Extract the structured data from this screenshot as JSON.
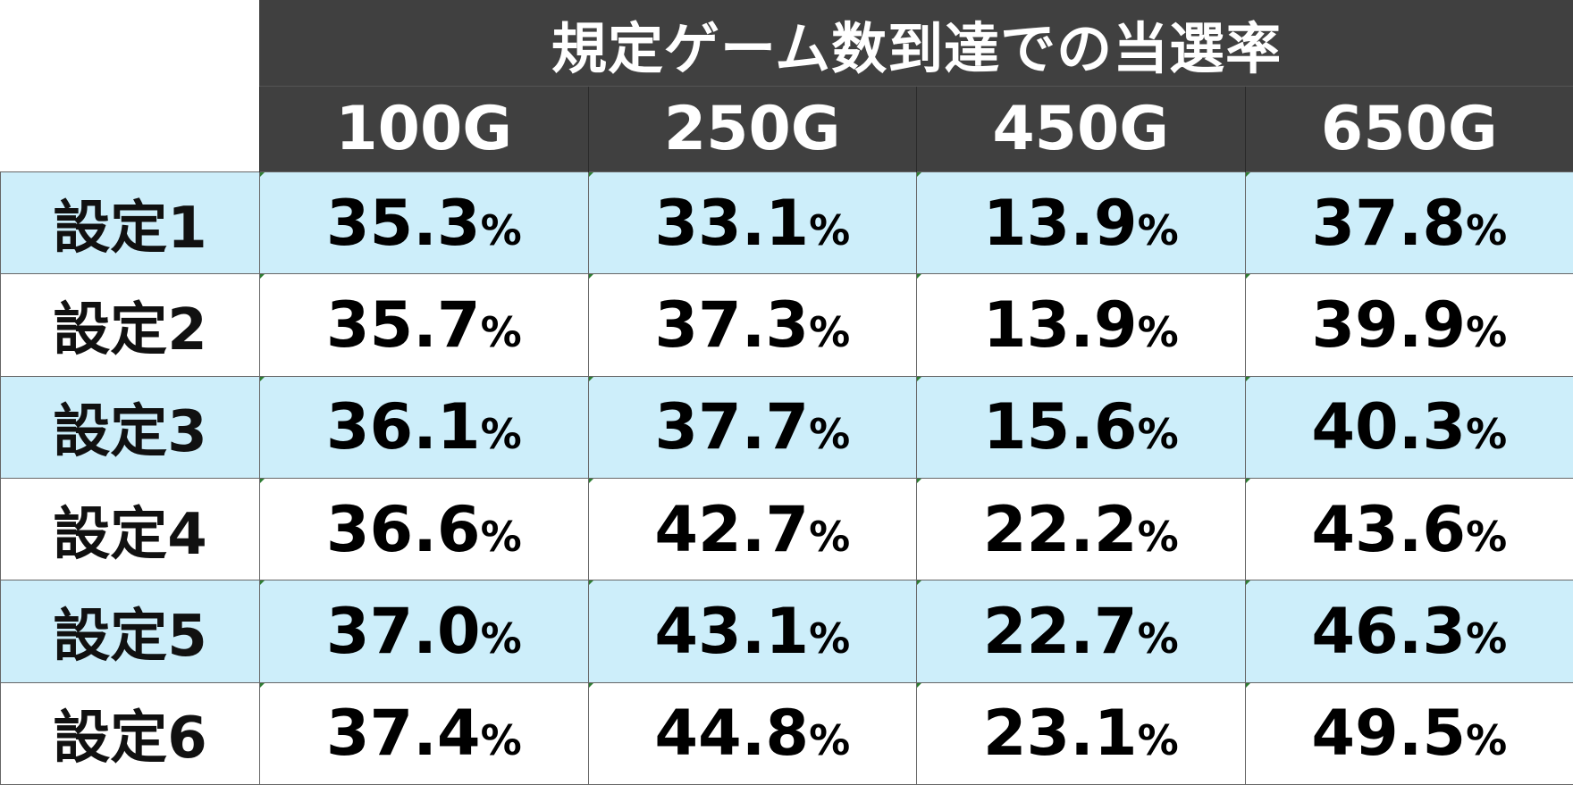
{
  "table": {
    "title": "規定ゲーム数到達での当選率",
    "columns": [
      "100G",
      "250G",
      "450G",
      "650G"
    ],
    "percent_sign": "%",
    "rows": [
      {
        "label": "設定1",
        "values": [
          "35.3",
          "33.1",
          "13.9",
          "37.8"
        ]
      },
      {
        "label": "設定2",
        "values": [
          "35.7",
          "37.3",
          "13.9",
          "39.9"
        ]
      },
      {
        "label": "設定3",
        "values": [
          "36.1",
          "37.7",
          "15.6",
          "40.3"
        ]
      },
      {
        "label": "設定4",
        "values": [
          "36.6",
          "42.7",
          "22.2",
          "43.6"
        ]
      },
      {
        "label": "設定5",
        "values": [
          "37.0",
          "43.1",
          "22.7",
          "46.3"
        ]
      },
      {
        "label": "設定6",
        "values": [
          "37.4",
          "44.8",
          "23.1",
          "49.5"
        ]
      }
    ]
  },
  "colors": {
    "header_bg": "#404040",
    "header_text": "#ffffff",
    "row_highlight": "#cdeefa",
    "row_plain": "#ffffff"
  }
}
